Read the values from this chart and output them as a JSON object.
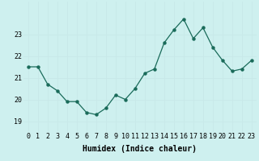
{
  "x": [
    0,
    1,
    2,
    3,
    4,
    5,
    6,
    7,
    8,
    9,
    10,
    11,
    12,
    13,
    14,
    15,
    16,
    17,
    18,
    19,
    20,
    21,
    22,
    23
  ],
  "y": [
    21.5,
    21.5,
    20.7,
    20.4,
    19.9,
    19.9,
    19.4,
    19.3,
    19.6,
    20.2,
    20.0,
    20.5,
    21.2,
    21.4,
    22.6,
    23.2,
    23.7,
    22.8,
    23.3,
    22.4,
    21.8,
    21.3,
    21.4,
    21.8
  ],
  "line_color": "#1a6b5a",
  "marker_color": "#1a6b5a",
  "bg_color": "#cef0ef",
  "grid_color": "#c8e8e8",
  "xlabel": "Humidex (Indice chaleur)",
  "ylim": [
    18.5,
    24.5
  ],
  "xlim": [
    -0.5,
    23.5
  ],
  "yticks": [
    19,
    20,
    21,
    22,
    23
  ],
  "xticks": [
    0,
    1,
    2,
    3,
    4,
    5,
    6,
    7,
    8,
    9,
    10,
    11,
    12,
    13,
    14,
    15,
    16,
    17,
    18,
    19,
    20,
    21,
    22,
    23
  ],
  "label_fontsize": 7,
  "tick_fontsize": 6
}
